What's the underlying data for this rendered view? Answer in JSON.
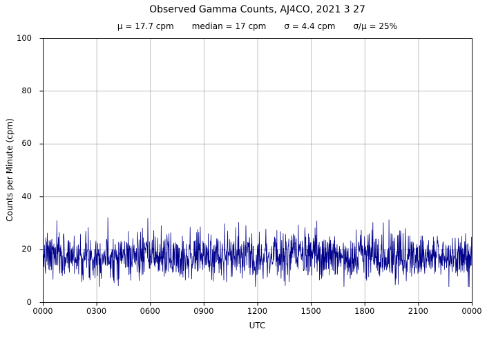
{
  "chart_data": {
    "type": "line",
    "title": "Observed Gamma Counts, AJ4CO, 2021 3 27",
    "stats": {
      "mu_label": "μ = 17.7 cpm",
      "median_label": "median = 17 cpm",
      "sigma_label": "σ = 4.4 cpm",
      "ratio_label": "σ/μ = 25%",
      "mu_cpm": 17.7,
      "median_cpm": 17,
      "sigma_cpm": 4.4,
      "sigma_over_mu_pct": 25
    },
    "xlabel": "UTC",
    "ylabel": "Counts per Minute (cpm)",
    "ylim": [
      0,
      100
    ],
    "yticks": [
      0,
      20,
      40,
      60,
      80,
      100
    ],
    "xtick_labels": [
      "0000",
      "0300",
      "0600",
      "0900",
      "1200",
      "1500",
      "1800",
      "2100",
      "0000"
    ],
    "grid": true,
    "grid_color": "#b0b0b0",
    "axis_color": "#000000",
    "line_color": "#00008b",
    "series": {
      "name": "observed gamma counts",
      "n_points": 1440,
      "mean": 17.7,
      "sigma": 4.4,
      "min_clip": 6,
      "max_clip": 33,
      "seed": 7
    }
  }
}
